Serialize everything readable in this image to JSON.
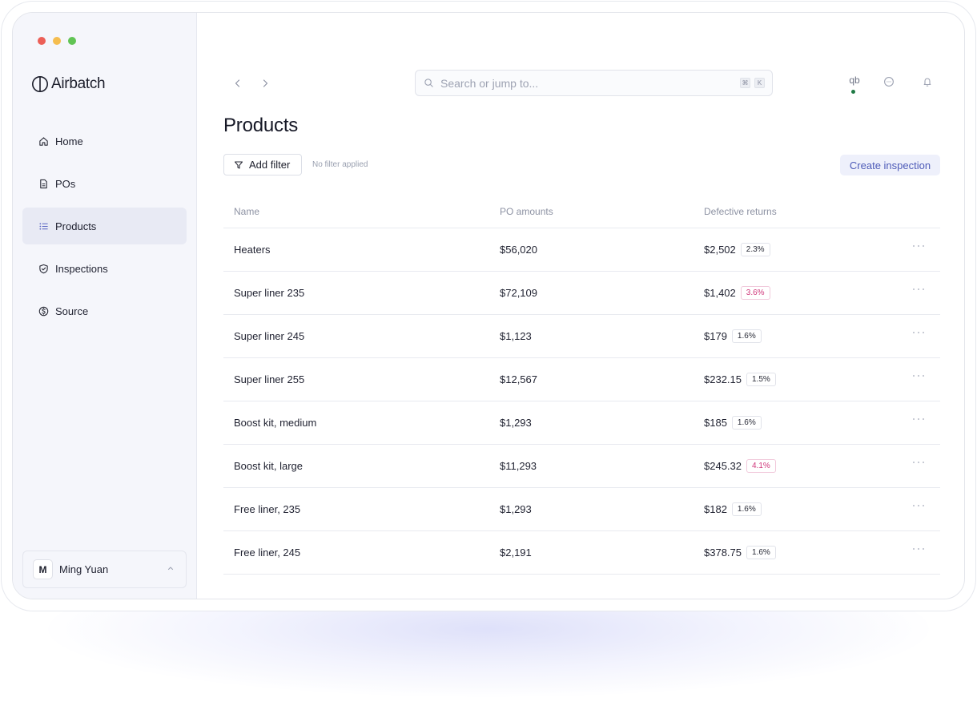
{
  "window": {
    "traffic_lights": {
      "close": "#ec5f57",
      "minimize": "#f5bd4f",
      "zoom": "#61c454"
    }
  },
  "brand": {
    "name": "Airbatch"
  },
  "sidebar": {
    "items": [
      {
        "label": "Home",
        "icon": "home-icon"
      },
      {
        "label": "POs",
        "icon": "document-icon"
      },
      {
        "label": "Products",
        "icon": "list-icon",
        "active": true
      },
      {
        "label": "Inspections",
        "icon": "shield-check-icon"
      },
      {
        "label": "Source",
        "icon": "dollar-circle-icon"
      }
    ],
    "user": {
      "initial": "M",
      "name": "Ming Yuan"
    }
  },
  "topbar": {
    "search_placeholder": "Search or jump to...",
    "shortcut_keys": [
      "⌘",
      "K"
    ],
    "account_initials": "qb"
  },
  "page": {
    "title": "Products",
    "add_filter_label": "Add filter",
    "filter_note": "No filter applied",
    "create_label": "Create inspection"
  },
  "table": {
    "columns": [
      "Name",
      "PO amounts",
      "Defective returns"
    ],
    "rows": [
      {
        "name": "Heaters",
        "po": "$56,020",
        "defective": "$2,502",
        "rate": "2.3%",
        "warn": false
      },
      {
        "name": "Super liner 235",
        "po": "$72,109",
        "defective": "$1,402",
        "rate": "3.6%",
        "warn": true
      },
      {
        "name": "Super liner 245",
        "po": "$1,123",
        "defective": "$179",
        "rate": "1.6%",
        "warn": false
      },
      {
        "name": "Super liner 255",
        "po": "$12,567",
        "defective": "$232.15",
        "rate": "1.5%",
        "warn": false
      },
      {
        "name": "Boost kit, medium",
        "po": "$1,293",
        "defective": "$185",
        "rate": "1.6%",
        "warn": false
      },
      {
        "name": "Boost kit, large",
        "po": "$11,293",
        "defective": "$245.32",
        "rate": "4.1%",
        "warn": true
      },
      {
        "name": "Free liner, 235",
        "po": "$1,293",
        "defective": "$182",
        "rate": "1.6%",
        "warn": false
      },
      {
        "name": "Free liner, 245",
        "po": "$2,191",
        "defective": "$378.75",
        "rate": "1.6%",
        "warn": false
      }
    ]
  },
  "colors": {
    "accent": "#4e5bb8",
    "warn": "#d0377b",
    "status_online": "#1f7a45"
  }
}
